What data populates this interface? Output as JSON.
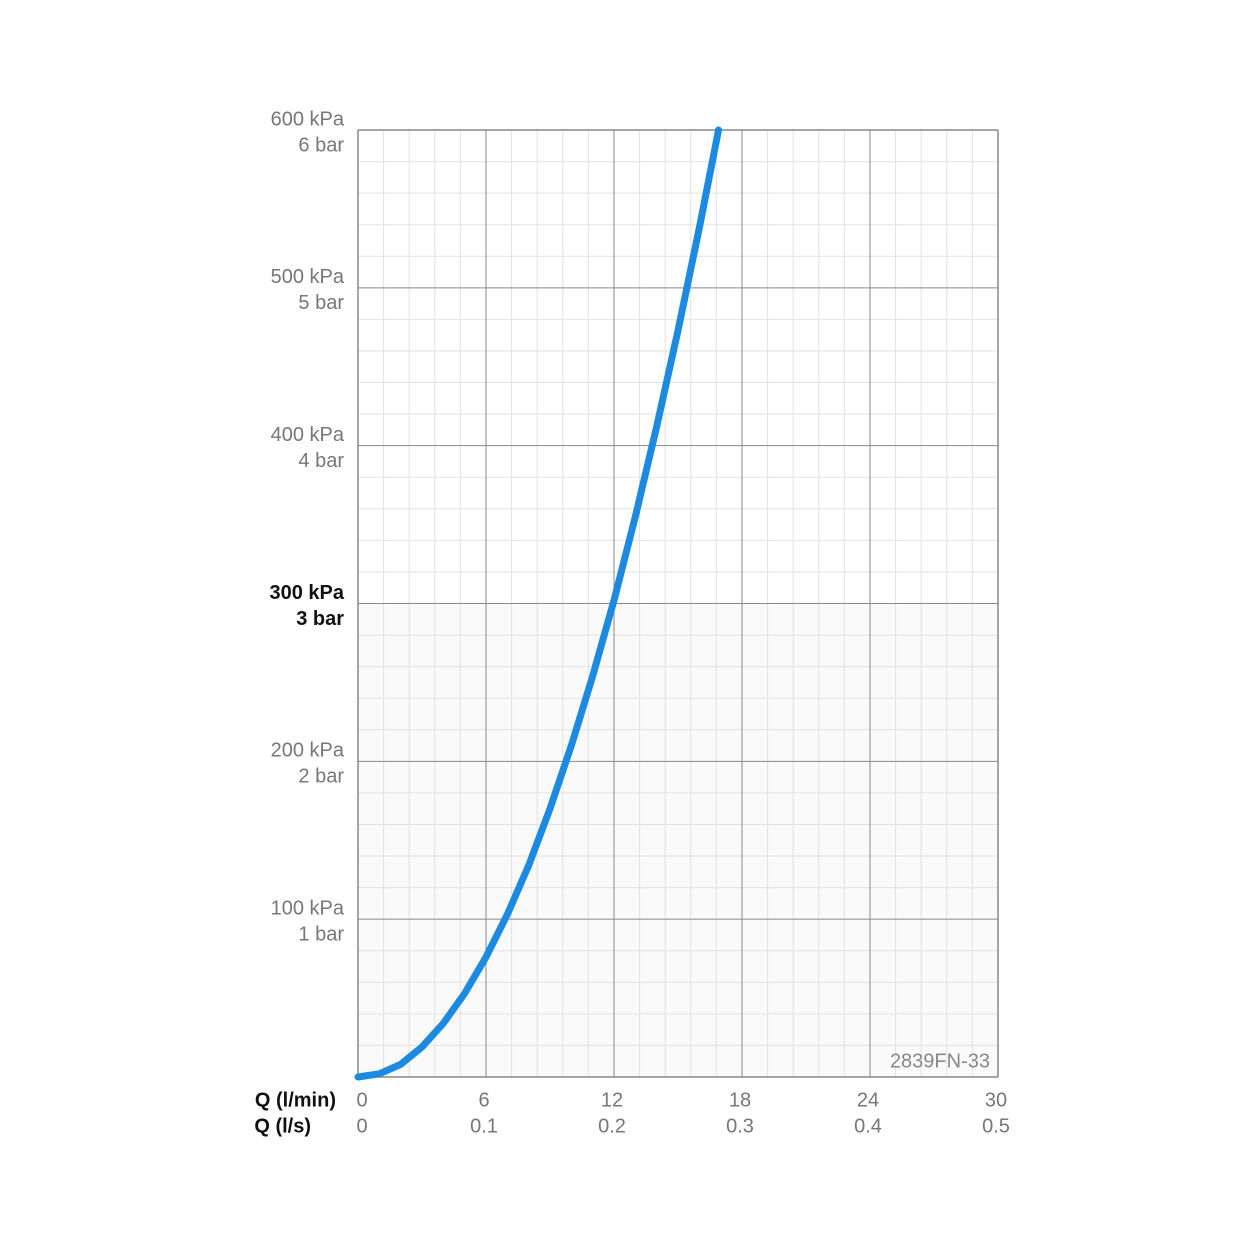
{
  "chart_data": {
    "type": "line",
    "x": [
      0,
      1,
      2,
      3,
      4,
      5,
      6,
      7,
      8,
      9,
      10,
      11,
      12,
      13,
      14,
      15,
      16,
      16.9
    ],
    "series": [
      {
        "color": "#1b8ae0",
        "values": [
          0,
          2,
          8,
          19,
          34,
          53,
          76,
          103,
          134,
          170,
          210,
          254,
          302,
          355,
          412,
          473,
          538,
          600
        ]
      }
    ],
    "xlabel": "Q (l/min)",
    "x2label": "Q (l/s)",
    "xlim": [
      0,
      30
    ],
    "xticks": [
      0,
      6,
      12,
      18,
      24,
      30
    ],
    "x2lim": [
      0,
      0.5
    ],
    "x2ticks": [
      0,
      0.1,
      0.2,
      0.3,
      0.4,
      0.5
    ],
    "ylim": [
      0,
      600
    ],
    "yticks": [
      {
        "value": 100,
        "label": "100 kPa"
      },
      {
        "value": 200,
        "label": "200 kPa"
      },
      {
        "value": 300,
        "label": "300 kPa",
        "bold": true
      },
      {
        "value": 400,
        "label": "400 kPa"
      },
      {
        "value": 500,
        "label": "500 kPa"
      },
      {
        "value": 600,
        "label": "600 kPa"
      }
    ],
    "y2lim": [
      0,
      6
    ],
    "y2ticks": [
      {
        "value": 1,
        "label": "1 bar"
      },
      {
        "value": 2,
        "label": "2 bar"
      },
      {
        "value": 3,
        "label": "3 bar",
        "bold": true
      },
      {
        "value": 4,
        "label": "4 bar"
      },
      {
        "value": 5,
        "label": "5 bar"
      },
      {
        "value": 6,
        "label": "6 bar"
      }
    ],
    "grid": true,
    "minor_grid": {
      "x_per_major": 5,
      "y_per_major": 5
    },
    "annotation": "2839FN-33"
  }
}
